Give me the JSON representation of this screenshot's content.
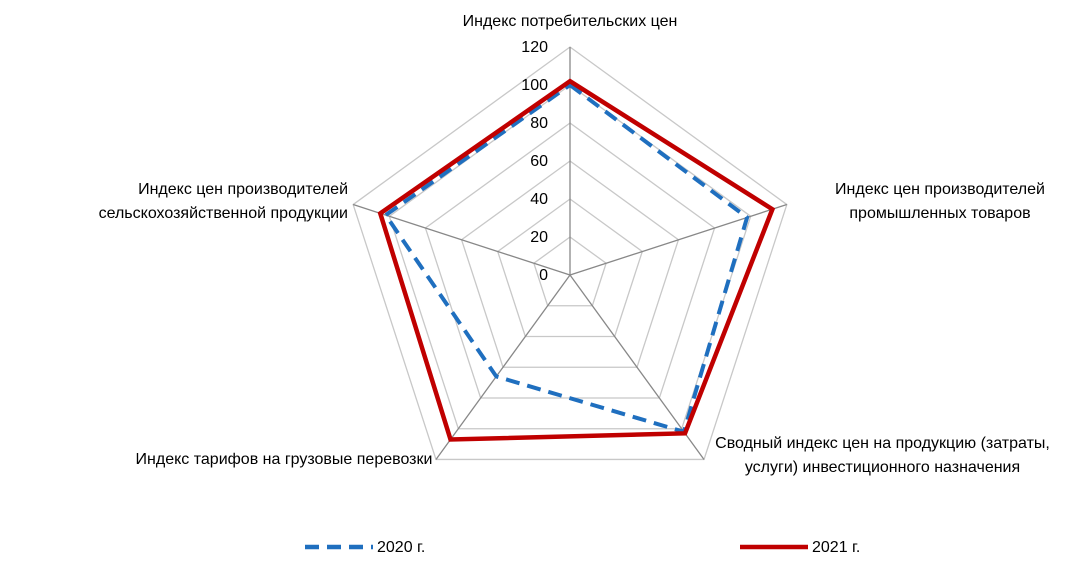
{
  "chart_data": {
    "type": "radar",
    "categories": [
      "Индекс потребительских цен",
      "Индекс цен производителей промышленных товаров",
      "Сводный индекс цен на продукцию (затраты, услуги) инвестиционного назначения",
      "Индекс тарифов на грузовые перевозки",
      "Индекс цен производителей сельскохозяйственной продукции"
    ],
    "series": [
      {
        "name": "2020 г.",
        "color": "#1f6fbf",
        "dash": true,
        "values": [
          100,
          98,
          102,
          66,
          102
        ]
      },
      {
        "name": "2021 г.",
        "color": "#c00000",
        "dash": false,
        "values": [
          102,
          112,
          103,
          107,
          105
        ]
      }
    ],
    "ylim": [
      0,
      120
    ],
    "yticks": [
      0,
      20,
      40,
      60,
      80,
      100,
      120
    ],
    "grid": true,
    "legend": "bottom"
  }
}
